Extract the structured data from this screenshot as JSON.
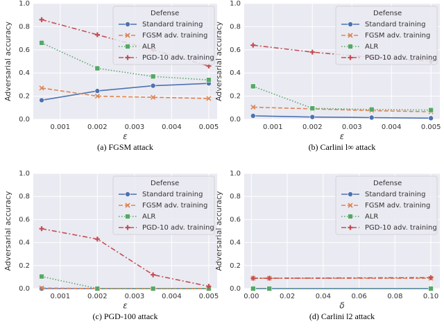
{
  "chart_data": [
    {
      "type": "line",
      "caption": "(a) FGSM attack",
      "xlabel": "ε",
      "ylabel": "Adversarial accuracy",
      "legend_title": "Defense",
      "legend": "upper right",
      "grid": true,
      "x": [
        0.0005,
        0.002,
        0.0035,
        0.005
      ],
      "xlim": [
        0.000275,
        0.005225
      ],
      "xticks": [
        0.001,
        0.002,
        0.003,
        0.004,
        0.005
      ],
      "ylim": [
        0,
        1
      ],
      "yticks": [
        {
          "value": 0,
          "label": "0.0"
        },
        0.2,
        0.4,
        0.6,
        0.8,
        {
          "value": 1,
          "label": "1.0"
        }
      ],
      "series": [
        {
          "name": "Standard training",
          "color": "#4c72b0",
          "values": [
            0.165,
            0.245,
            0.29,
            0.31
          ]
        },
        {
          "name": "FGSM adv. training",
          "color": "#dd8452",
          "values": [
            0.27,
            0.2,
            0.19,
            0.18
          ]
        },
        {
          "name": "ALR",
          "color": "#55a868",
          "values": [
            0.66,
            0.44,
            0.37,
            0.34
          ]
        },
        {
          "name": "PGD-10 adv. training",
          "color": "#c44e52",
          "values": [
            0.86,
            0.73,
            0.6,
            0.46
          ]
        }
      ]
    },
    {
      "type": "line",
      "caption": "(b) Carlini l∞ attack",
      "xlabel": "ε",
      "ylabel": "Adversarial accuracy",
      "legend_title": "Defense",
      "legend": "upper right",
      "grid": true,
      "x": [
        0.0005,
        0.002,
        0.0035,
        0.005
      ],
      "xlim": [
        0.000275,
        0.005225
      ],
      "xticks": [
        0.001,
        0.002,
        0.003,
        0.004,
        0.005
      ],
      "ylim": [
        0,
        1
      ],
      "yticks": [
        {
          "value": 0,
          "label": "0.0"
        },
        0.2,
        0.4,
        0.6,
        0.8,
        {
          "value": 1,
          "label": "1.0"
        }
      ],
      "series": [
        {
          "name": "Standard training",
          "color": "#4c72b0",
          "values": [
            0.03,
            0.02,
            0.015,
            0.01
          ]
        },
        {
          "name": "FGSM adv. training",
          "color": "#dd8452",
          "values": [
            0.105,
            0.09,
            0.075,
            0.065
          ]
        },
        {
          "name": "ALR",
          "color": "#55a868",
          "values": [
            0.285,
            0.095,
            0.085,
            0.08
          ]
        },
        {
          "name": "PGD-10 adv. training",
          "color": "#c44e52",
          "values": [
            0.64,
            0.58,
            0.535,
            0.5
          ]
        }
      ]
    },
    {
      "type": "line",
      "caption": "(c) PGD-100 attack",
      "xlabel": "ε",
      "ylabel": "Adversarial accuracy",
      "legend_title": "Defense",
      "legend": "upper right",
      "grid": true,
      "x": [
        0.0005,
        0.002,
        0.0035,
        0.005
      ],
      "xlim": [
        0.000275,
        0.005225
      ],
      "xticks": [
        0.001,
        0.002,
        0.003,
        0.004,
        0.005
      ],
      "ylim": [
        0,
        1
      ],
      "yticks": [
        {
          "value": 0,
          "label": "0.0"
        },
        0.2,
        0.4,
        0.6,
        0.8,
        {
          "value": 1,
          "label": "1.0"
        }
      ],
      "series": [
        {
          "name": "Standard training",
          "color": "#4c72b0",
          "values": [
            0,
            0,
            0,
            0
          ]
        },
        {
          "name": "FGSM adv. training",
          "color": "#dd8452",
          "values": [
            0.005,
            0,
            0,
            0
          ]
        },
        {
          "name": "ALR",
          "color": "#55a868",
          "values": [
            0.105,
            0,
            0,
            0
          ]
        },
        {
          "name": "PGD-10 adv. training",
          "color": "#c44e52",
          "values": [
            0.52,
            0.43,
            0.12,
            0.02
          ]
        }
      ]
    },
    {
      "type": "line",
      "caption": "(d) Carlini l2 attack",
      "xlabel": "δ",
      "ylabel": "Adversarial accuracy",
      "legend_title": "Defense",
      "legend": "upper right",
      "grid": true,
      "x": [
        0.001,
        0.01,
        0.1
      ],
      "xlim": [
        -0.004,
        0.105
      ],
      "xticks": [
        {
          "value": 0,
          "label": "0.00"
        },
        {
          "value": 0.02,
          "label": "0.02"
        },
        {
          "value": 0.04,
          "label": "0.04"
        },
        {
          "value": 0.06,
          "label": "0.06"
        },
        {
          "value": 0.08,
          "label": "0.08"
        },
        {
          "value": 0.1,
          "label": "0.10"
        }
      ],
      "ylim": [
        0,
        1
      ],
      "yticks": [
        {
          "value": 0,
          "label": "0.0"
        },
        0.2,
        0.4,
        0.6,
        0.8,
        {
          "value": 1,
          "label": "1.0"
        }
      ],
      "series": [
        {
          "name": "Standard training",
          "color": "#4c72b0",
          "values": [
            0,
            0,
            0
          ]
        },
        {
          "name": "FGSM adv. training",
          "color": "#dd8452",
          "values": [
            0.09,
            0.09,
            0.09
          ]
        },
        {
          "name": "ALR",
          "color": "#55a868",
          "values": [
            0,
            0,
            0
          ]
        },
        {
          "name": "PGD-10 adv. training",
          "color": "#c44e52",
          "values": [
            0.09,
            0.09,
            0.095
          ]
        }
      ]
    }
  ]
}
